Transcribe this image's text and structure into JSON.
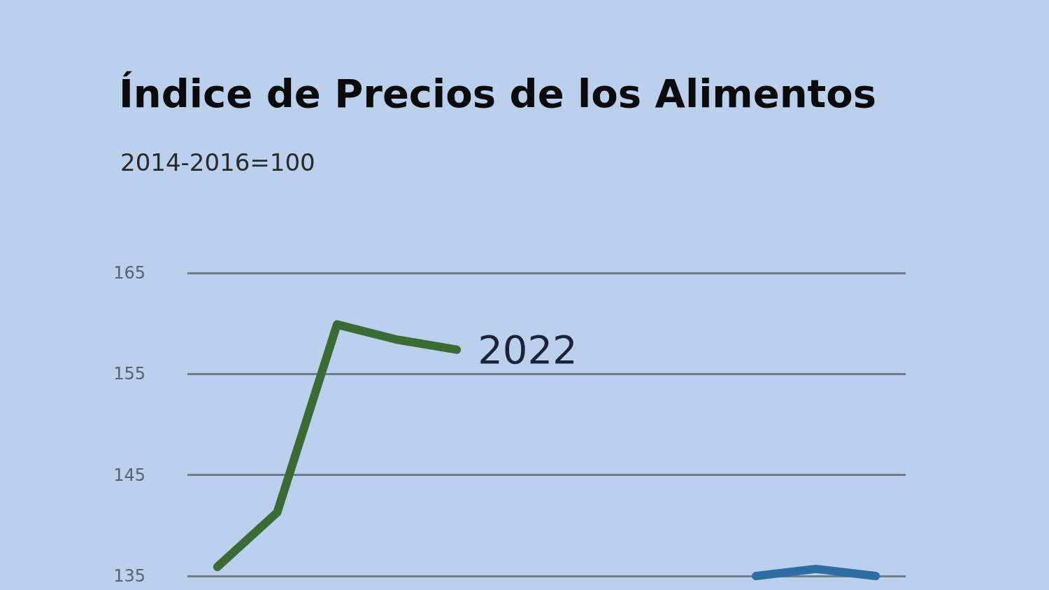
{
  "chart_data": {
    "type": "line",
    "title": "Índice de Precios de los Alimentos",
    "subtitle": "2014-2016=100",
    "categories": [
      null,
      null,
      null,
      null,
      null,
      null,
      null,
      null,
      null,
      null,
      null,
      null
    ],
    "series": [
      {
        "name": "2022",
        "color": "#3a6b35",
        "values": [
          135.9,
          141.3,
          159.9,
          158.4,
          157.4,
          null,
          null,
          null,
          null,
          null,
          null,
          null
        ]
      },
      {
        "color": "#2e6da4",
        "values": [
          null,
          null,
          null,
          null,
          null,
          null,
          null,
          null,
          null,
          135.0,
          135.7,
          135.0
        ]
      }
    ],
    "ylim": [
      135,
      165
    ],
    "yticks": [
      135,
      145,
      155,
      165
    ],
    "grid": "y",
    "legend": false,
    "line_style": "solid"
  }
}
